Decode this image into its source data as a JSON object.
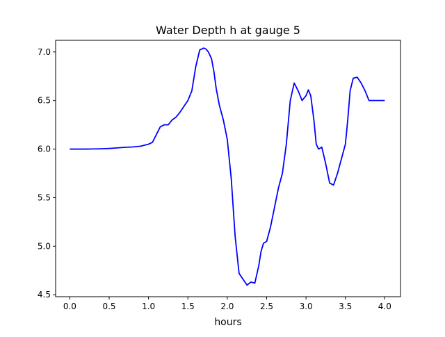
{
  "chart_data": {
    "type": "line",
    "title": "Water Depth h at gauge 5",
    "xlabel": "hours",
    "ylabel": "",
    "xlim": [
      -0.18,
      4.2
    ],
    "ylim": [
      4.48,
      7.12
    ],
    "xticks": [
      0.0,
      0.5,
      1.0,
      1.5,
      2.0,
      2.5,
      3.0,
      3.5,
      4.0
    ],
    "xtick_labels": [
      "0.0",
      "0.5",
      "1.0",
      "1.5",
      "2.0",
      "2.5",
      "3.0",
      "3.5",
      "4.0"
    ],
    "yticks": [
      4.5,
      5.0,
      5.5,
      6.0,
      6.5,
      7.0
    ],
    "ytick_labels": [
      "4.5",
      "5.0",
      "5.5",
      "6.0",
      "6.5",
      "7.0"
    ],
    "grid": false,
    "legend": "none",
    "series": [
      {
        "color": "#0000ff",
        "x": [
          0.0,
          0.2,
          0.4,
          0.5,
          0.6,
          0.7,
          0.8,
          0.9,
          1.0,
          1.05,
          1.1,
          1.15,
          1.2,
          1.25,
          1.3,
          1.35,
          1.4,
          1.45,
          1.5,
          1.55,
          1.6,
          1.65,
          1.7,
          1.73,
          1.76,
          1.8,
          1.83,
          1.86,
          1.9,
          1.95,
          2.0,
          2.05,
          2.1,
          2.15,
          2.2,
          2.25,
          2.3,
          2.35,
          2.4,
          2.43,
          2.46,
          2.5,
          2.55,
          2.6,
          2.65,
          2.7,
          2.75,
          2.8,
          2.85,
          2.9,
          2.95,
          3.0,
          3.03,
          3.06,
          3.1,
          3.13,
          3.16,
          3.2,
          3.25,
          3.3,
          3.35,
          3.4,
          3.45,
          3.5,
          3.53,
          3.56,
          3.6,
          3.65,
          3.7,
          3.75,
          3.8,
          3.85,
          3.88,
          3.92,
          3.96,
          4.0
        ],
        "y": [
          6.0,
          6.0,
          6.003,
          6.006,
          6.012,
          6.018,
          6.022,
          6.03,
          6.05,
          6.07,
          6.15,
          6.23,
          6.25,
          6.25,
          6.3,
          6.33,
          6.38,
          6.44,
          6.5,
          6.6,
          6.85,
          7.02,
          7.04,
          7.03,
          7.0,
          6.93,
          6.8,
          6.62,
          6.45,
          6.3,
          6.1,
          5.7,
          5.1,
          4.72,
          4.66,
          4.6,
          4.63,
          4.62,
          4.8,
          4.95,
          5.03,
          5.05,
          5.2,
          5.4,
          5.6,
          5.75,
          6.05,
          6.5,
          6.68,
          6.6,
          6.5,
          6.55,
          6.61,
          6.55,
          6.3,
          6.05,
          6.0,
          6.02,
          5.85,
          5.65,
          5.63,
          5.75,
          5.9,
          6.05,
          6.3,
          6.6,
          6.73,
          6.74,
          6.68,
          6.6,
          6.5,
          6.5,
          6.5,
          6.5,
          6.5,
          6.5
        ]
      }
    ]
  }
}
